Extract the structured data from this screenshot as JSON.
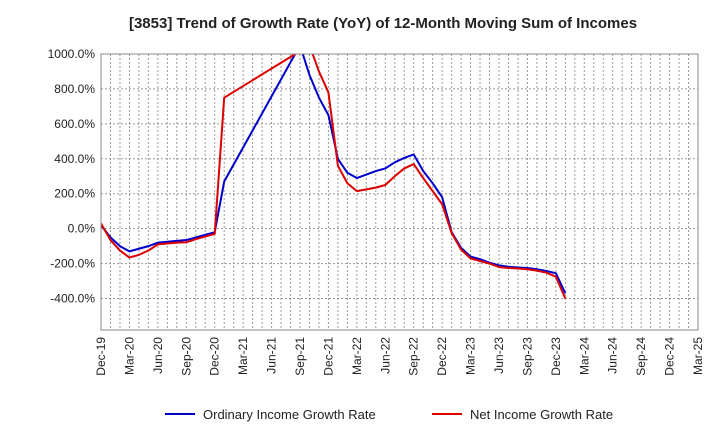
{
  "chart_data": {
    "type": "line",
    "title": "[3853]  Trend of Growth Rate (YoY) of 12-Month Moving Sum of Incomes",
    "xlabel": "",
    "ylabel": "",
    "ylim": [
      -580,
      1000
    ],
    "yticks": [
      1000,
      800,
      600,
      400,
      200,
      0,
      -200,
      -400
    ],
    "ytick_labels": [
      "1000.0%",
      "800.0%",
      "600.0%",
      "400.0%",
      "200.0%",
      "0.0%",
      "-200.0%",
      "-400.0%"
    ],
    "x_tick_labels": [
      "Dec-19",
      "Mar-20",
      "Jun-20",
      "Sep-20",
      "Dec-20",
      "Mar-21",
      "Jun-21",
      "Sep-21",
      "Dec-21",
      "Mar-22",
      "Jun-22",
      "Sep-22",
      "Dec-22",
      "Mar-23",
      "Jun-23",
      "Sep-23",
      "Dec-23",
      "Mar-24",
      "Jun-24",
      "Sep-24",
      "Dec-24",
      "Mar-25"
    ],
    "x_start": "2019-12",
    "grid": true,
    "legend_position": "bottom",
    "series": [
      {
        "name": "Ordinary Income Growth Rate",
        "color": "#0000cc",
        "points": [
          [
            "2019-12",
            20
          ],
          [
            "2020-01",
            -50
          ],
          [
            "2020-02",
            -100
          ],
          [
            "2020-03",
            -130
          ],
          [
            "2020-04",
            -115
          ],
          [
            "2020-05",
            -100
          ],
          [
            "2020-06",
            -80
          ],
          [
            "2020-07",
            -75
          ],
          [
            "2020-08",
            -70
          ],
          [
            "2020-09",
            -65
          ],
          [
            "2020-10",
            -50
          ],
          [
            "2020-11",
            -35
          ],
          [
            "2020-12",
            -20
          ],
          [
            "2021-01",
            270
          ],
          [
            "2021-09",
            1050
          ],
          [
            "2021-10",
            880
          ],
          [
            "2021-11",
            750
          ],
          [
            "2021-12",
            650
          ],
          [
            "2022-01",
            400
          ],
          [
            "2022-02",
            320
          ],
          [
            "2022-03",
            290
          ],
          [
            "2022-04",
            310
          ],
          [
            "2022-05",
            330
          ],
          [
            "2022-06",
            345
          ],
          [
            "2022-07",
            380
          ],
          [
            "2022-08",
            405
          ],
          [
            "2022-09",
            425
          ],
          [
            "2022-10",
            330
          ],
          [
            "2022-11",
            260
          ],
          [
            "2022-12",
            180
          ],
          [
            "2023-01",
            -20
          ],
          [
            "2023-02",
            -110
          ],
          [
            "2023-03",
            -160
          ],
          [
            "2023-04",
            -175
          ],
          [
            "2023-05",
            -195
          ],
          [
            "2023-06",
            -210
          ],
          [
            "2023-07",
            -218
          ],
          [
            "2023-08",
            -222
          ],
          [
            "2023-09",
            -225
          ],
          [
            "2023-10",
            -232
          ],
          [
            "2023-11",
            -242
          ],
          [
            "2023-12",
            -255
          ],
          [
            "2024-01",
            -370
          ]
        ]
      },
      {
        "name": "Net Income Growth Rate",
        "color": "#dd0000",
        "points": [
          [
            "2019-12",
            30
          ],
          [
            "2020-01",
            -65
          ],
          [
            "2020-02",
            -125
          ],
          [
            "2020-03",
            -165
          ],
          [
            "2020-04",
            -150
          ],
          [
            "2020-05",
            -125
          ],
          [
            "2020-06",
            -90
          ],
          [
            "2020-07",
            -85
          ],
          [
            "2020-08",
            -80
          ],
          [
            "2020-09",
            -78
          ],
          [
            "2020-10",
            -60
          ],
          [
            "2020-11",
            -45
          ],
          [
            "2020-12",
            -30
          ],
          [
            "2021-01",
            750
          ],
          [
            "2021-10",
            1050
          ],
          [
            "2021-11",
            900
          ],
          [
            "2021-12",
            780
          ],
          [
            "2022-01",
            360
          ],
          [
            "2022-02",
            260
          ],
          [
            "2022-03",
            215
          ],
          [
            "2022-04",
            225
          ],
          [
            "2022-05",
            235
          ],
          [
            "2022-06",
            250
          ],
          [
            "2022-07",
            300
          ],
          [
            "2022-08",
            345
          ],
          [
            "2022-09",
            370
          ],
          [
            "2022-10",
            290
          ],
          [
            "2022-11",
            215
          ],
          [
            "2022-12",
            140
          ],
          [
            "2023-01",
            -25
          ],
          [
            "2023-02",
            -120
          ],
          [
            "2023-03",
            -170
          ],
          [
            "2023-04",
            -185
          ],
          [
            "2023-05",
            -200
          ],
          [
            "2023-06",
            -220
          ],
          [
            "2023-07",
            -225
          ],
          [
            "2023-08",
            -228
          ],
          [
            "2023-09",
            -232
          ],
          [
            "2023-10",
            -240
          ],
          [
            "2023-11",
            -252
          ],
          [
            "2023-12",
            -275
          ],
          [
            "2024-01",
            -400
          ]
        ]
      }
    ]
  }
}
